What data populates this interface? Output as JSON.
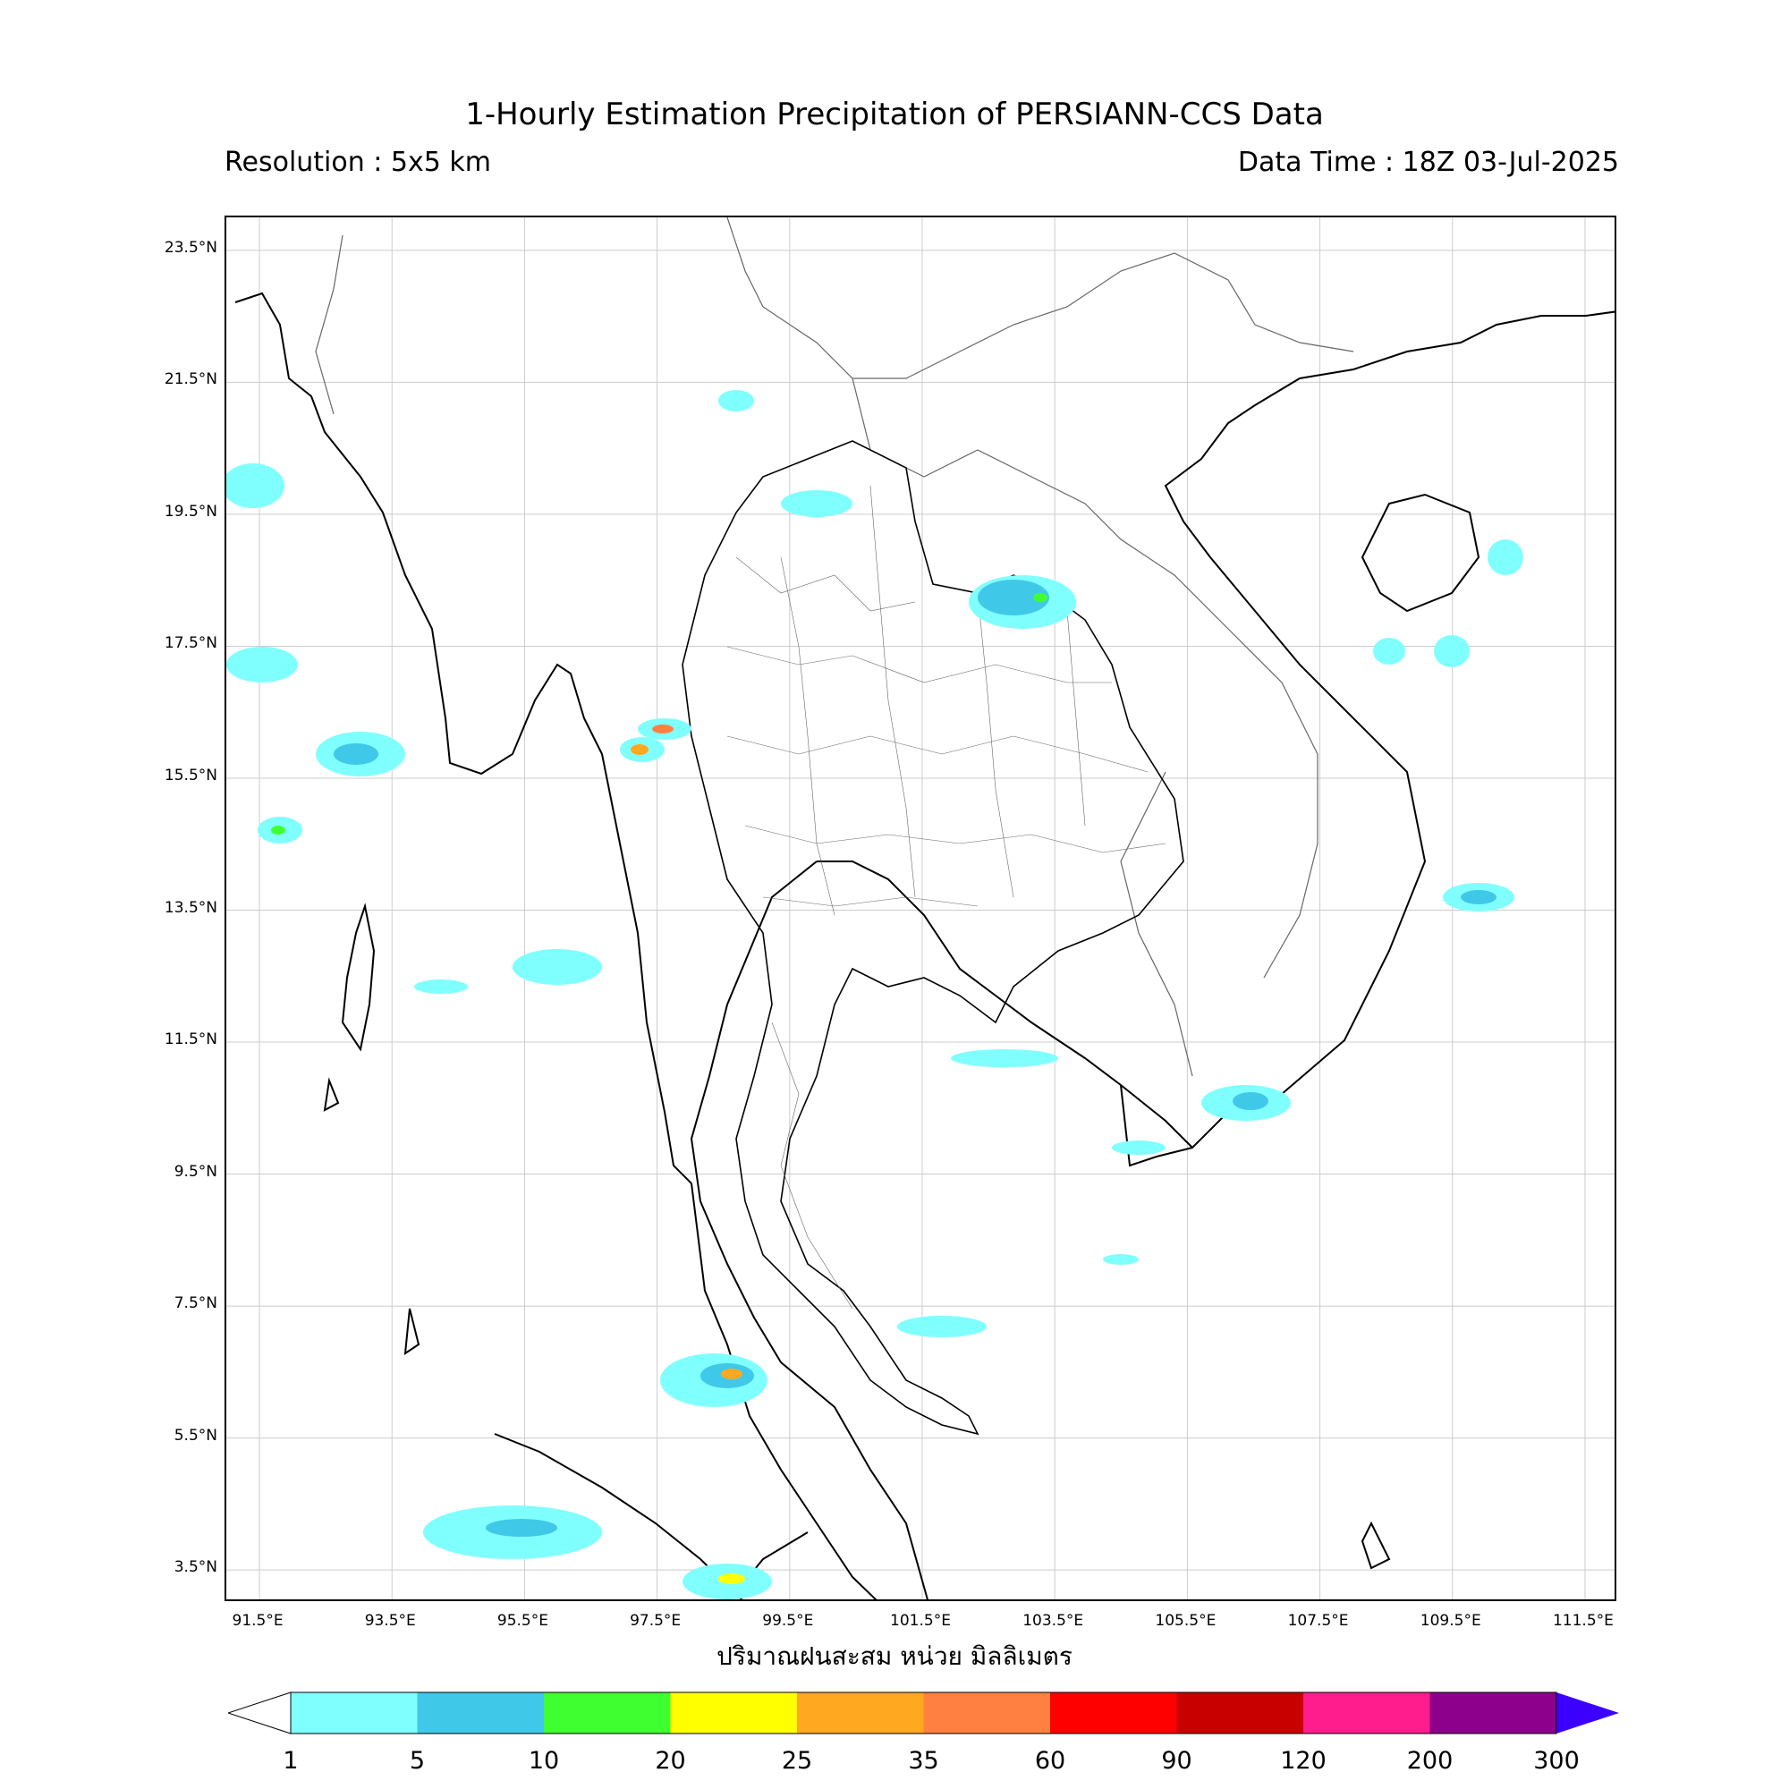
{
  "title": "1-Hourly Estimation Precipitation of PERSIANN-CCS Data",
  "resolution": "Resolution : 5x5 km",
  "data_time": "Data Time : 18Z 03-Jul-2025",
  "xlabel": "ปริมาณฝนสะสม หน่วย มิลลิเมตร",
  "lat_labels": [
    "23.5°N",
    "21.5°N",
    "19.5°N",
    "17.5°N",
    "15.5°N",
    "13.5°N",
    "11.5°N",
    "9.5°N",
    "7.5°N",
    "5.5°N",
    "3.5°N"
  ],
  "lon_labels": [
    "91.5°E",
    "93.5°E",
    "95.5°E",
    "97.5°E",
    "99.5°E",
    "101.5°E",
    "103.5°E",
    "105.5°E",
    "107.5°E",
    "109.5°E",
    "111.5°E"
  ],
  "colorbar": {
    "ticks": [
      "1",
      "5",
      "10",
      "20",
      "25",
      "35",
      "60",
      "90",
      "120",
      "200",
      "300"
    ],
    "colors": [
      "#80ffff",
      "#40c8e8",
      "#40ff30",
      "#ffff00",
      "#ffa820",
      "#ff8040",
      "#ff0000",
      "#c80000",
      "#ff1c8c",
      "#8c008c"
    ],
    "over_color": "#3c00ff",
    "under_color": "#ffffff"
  },
  "extent": {
    "lon_min": 91.0,
    "lon_max": 112.0,
    "lat_min": 3.0,
    "lat_max": 24.0
  }
}
